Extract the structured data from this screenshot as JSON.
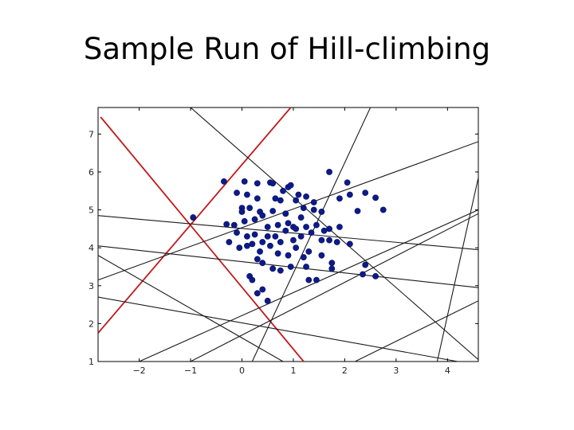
{
  "slide": {
    "title": "Sample Run of Hill-climbing"
  },
  "chart_data": {
    "type": "scatter",
    "xlim": [
      -2.8,
      4.6
    ],
    "ylim": [
      1.0,
      7.7
    ],
    "grid": false,
    "x_ticks": [
      -2,
      -1,
      0,
      1,
      2,
      3,
      4
    ],
    "y_ticks": [
      1,
      2,
      3,
      4,
      5,
      6,
      7
    ],
    "point_color": "#0d1a8c",
    "points": [
      [
        -0.95,
        4.8
      ],
      [
        -0.35,
        5.75
      ],
      [
        0.05,
        5.75
      ],
      [
        0.3,
        5.7
      ],
      [
        0.55,
        5.72
      ],
      [
        0.6,
        5.7
      ],
      [
        0.8,
        5.5
      ],
      [
        0.9,
        5.6
      ],
      [
        0.95,
        5.65
      ],
      [
        1.1,
        5.4
      ],
      [
        1.25,
        5.35
      ],
      [
        1.7,
        6.0
      ],
      [
        2.05,
        5.72
      ],
      [
        -0.1,
        5.45
      ],
      [
        0.1,
        5.4
      ],
      [
        0.3,
        5.3
      ],
      [
        0.65,
        5.3
      ],
      [
        0.75,
        5.25
      ],
      [
        1.05,
        5.25
      ],
      [
        1.4,
        5.2
      ],
      [
        1.9,
        5.3
      ],
      [
        2.1,
        5.4
      ],
      [
        2.4,
        5.45
      ],
      [
        2.6,
        5.32
      ],
      [
        2.25,
        4.97
      ],
      [
        2.75,
        5.0
      ],
      [
        0.0,
        5.05
      ],
      [
        0.15,
        5.05
      ],
      [
        0.35,
        4.95
      ],
      [
        0.6,
        4.97
      ],
      [
        0.85,
        4.9
      ],
      [
        1.15,
        4.8
      ],
      [
        1.2,
        5.05
      ],
      [
        1.4,
        5.0
      ],
      [
        1.55,
        4.95
      ],
      [
        -0.3,
        4.62
      ],
      [
        -0.15,
        4.6
      ],
      [
        0.0,
        4.95
      ],
      [
        0.05,
        4.7
      ],
      [
        0.25,
        4.75
      ],
      [
        0.4,
        4.85
      ],
      [
        0.5,
        4.55
      ],
      [
        0.7,
        4.6
      ],
      [
        0.9,
        4.65
      ],
      [
        1.0,
        4.55
      ],
      [
        1.05,
        4.5
      ],
      [
        1.25,
        4.55
      ],
      [
        1.45,
        4.6
      ],
      [
        1.6,
        4.45
      ],
      [
        1.7,
        4.5
      ],
      [
        1.9,
        4.55
      ],
      [
        2.1,
        4.1
      ],
      [
        -0.25,
        4.15
      ],
      [
        -0.1,
        4.4
      ],
      [
        0.1,
        4.3
      ],
      [
        0.25,
        4.35
      ],
      [
        0.4,
        4.15
      ],
      [
        0.5,
        4.3
      ],
      [
        0.65,
        4.3
      ],
      [
        0.75,
        4.15
      ],
      [
        0.85,
        4.45
      ],
      [
        1.0,
        4.2
      ],
      [
        1.15,
        4.3
      ],
      [
        1.35,
        4.4
      ],
      [
        1.55,
        4.2
      ],
      [
        1.7,
        4.2
      ],
      [
        1.85,
        4.15
      ],
      [
        -0.05,
        4.0
      ],
      [
        0.1,
        4.05
      ],
      [
        0.2,
        4.1
      ],
      [
        0.35,
        3.9
      ],
      [
        0.55,
        4.05
      ],
      [
        0.7,
        3.85
      ],
      [
        0.9,
        3.8
      ],
      [
        1.05,
        4.0
      ],
      [
        1.2,
        3.75
      ],
      [
        1.3,
        3.9
      ],
      [
        1.55,
        3.8
      ],
      [
        1.75,
        3.6
      ],
      [
        2.4,
        3.55
      ],
      [
        0.3,
        3.7
      ],
      [
        0.4,
        3.6
      ],
      [
        0.6,
        3.45
      ],
      [
        0.75,
        3.4
      ],
      [
        0.95,
        3.5
      ],
      [
        1.25,
        3.5
      ],
      [
        1.75,
        3.45
      ],
      [
        2.35,
        3.3
      ],
      [
        2.6,
        3.25
      ],
      [
        0.15,
        3.25
      ],
      [
        0.2,
        3.15
      ],
      [
        1.3,
        3.15
      ],
      [
        1.45,
        3.15
      ],
      [
        0.4,
        2.9
      ],
      [
        0.3,
        2.8
      ],
      [
        0.5,
        2.6
      ]
    ],
    "lines": [
      {
        "color": "red",
        "x1": -2.75,
        "y1": 7.45,
        "x2": 1.2,
        "y2": 1.0
      },
      {
        "color": "red",
        "x1": -2.8,
        "y1": 1.75,
        "x2": 0.95,
        "y2": 7.7
      },
      {
        "color": "black",
        "x1": -1.0,
        "y1": 7.7,
        "x2": 4.6,
        "y2": 1.05
      },
      {
        "color": "black",
        "x1": -2.8,
        "y1": 3.15,
        "x2": 4.6,
        "y2": 6.8
      },
      {
        "color": "black",
        "x1": -2.8,
        "y1": 4.85,
        "x2": 4.6,
        "y2": 3.95
      },
      {
        "color": "black",
        "x1": -2.8,
        "y1": 4.05,
        "x2": 4.6,
        "y2": 2.95
      },
      {
        "color": "black",
        "x1": -2.8,
        "y1": 2.7,
        "x2": 4.2,
        "y2": 1.0
      },
      {
        "color": "black",
        "x1": -2.8,
        "y1": 3.8,
        "x2": 0.8,
        "y2": 1.0
      },
      {
        "color": "black",
        "x1": 0.2,
        "y1": 1.0,
        "x2": 2.5,
        "y2": 7.7
      },
      {
        "color": "black",
        "x1": -2.0,
        "y1": 1.0,
        "x2": 4.6,
        "y2": 5.0
      },
      {
        "color": "black",
        "x1": -1.0,
        "y1": 1.0,
        "x2": 4.6,
        "y2": 4.9
      },
      {
        "color": "black",
        "x1": 2.2,
        "y1": 1.0,
        "x2": 4.6,
        "y2": 2.6
      },
      {
        "color": "black",
        "x1": 3.8,
        "y1": 1.0,
        "x2": 4.6,
        "y2": 5.85
      }
    ]
  }
}
